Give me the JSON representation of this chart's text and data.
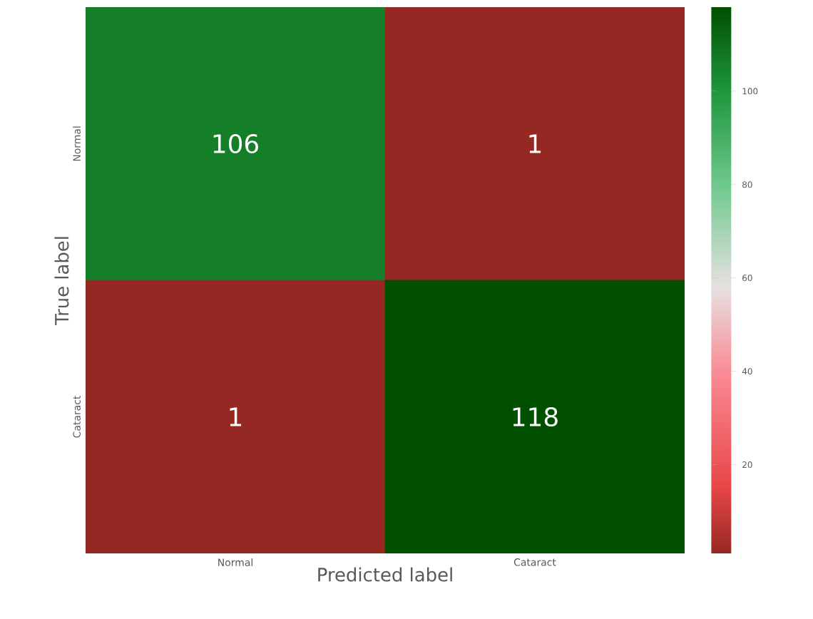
{
  "chart_data": {
    "type": "heatmap",
    "xlabel": "Predicted label",
    "ylabel": "True label",
    "categories": [
      "Normal",
      "Cataract"
    ],
    "y_categories": [
      "Normal",
      "Cataract"
    ],
    "cells": [
      [
        106,
        1
      ],
      [
        1,
        118
      ]
    ],
    "clim": [
      1,
      118
    ],
    "cticks": [
      20,
      40,
      60,
      80,
      100
    ],
    "data_labels": true
  }
}
